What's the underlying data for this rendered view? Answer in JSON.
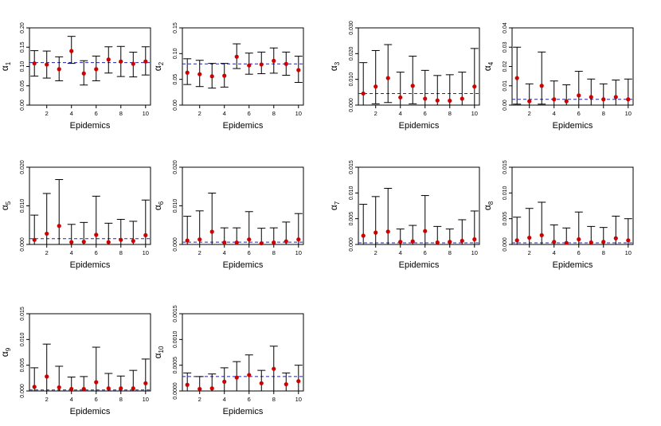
{
  "colors": {
    "point": "#cc0000",
    "ref_line": "#2222aa",
    "axis": "#000000",
    "errorbar": "#000000"
  },
  "chart_data": [
    {
      "type": "errorbar",
      "ylabel": "α",
      "ylabel_sub": "1",
      "xlabel": "Epidemics",
      "x": [
        1,
        2,
        3,
        4,
        5,
        6,
        7,
        8,
        9,
        10
      ],
      "xticks": [
        "2",
        "4",
        "6",
        "8",
        "10"
      ],
      "xlim": [
        0.6,
        10.4
      ],
      "ylim": [
        0,
        0.2
      ],
      "yticks": [
        "0.00",
        "0.05",
        "0.10",
        "0.15",
        "0.20"
      ],
      "ref_line": 0.11,
      "values": [
        0.108,
        0.105,
        0.093,
        0.14,
        0.082,
        0.093,
        0.118,
        0.113,
        0.107,
        0.113
      ],
      "lower": [
        0.075,
        0.07,
        0.063,
        0.108,
        0.052,
        0.063,
        0.083,
        0.074,
        0.073,
        0.078
      ],
      "upper": [
        0.141,
        0.14,
        0.125,
        0.178,
        0.115,
        0.127,
        0.151,
        0.152,
        0.137,
        0.151
      ]
    },
    {
      "type": "errorbar",
      "ylabel": "α",
      "ylabel_sub": "2",
      "xlabel": "Epidemics",
      "x": [
        1,
        2,
        3,
        4,
        5,
        6,
        7,
        8,
        9,
        10
      ],
      "xticks": [
        "2",
        "4",
        "6",
        "8",
        "10"
      ],
      "xlim": [
        0.6,
        10.4
      ],
      "ylim": [
        0,
        0.15
      ],
      "yticks": [
        "0.00",
        "0.05",
        "0.10",
        "0.15"
      ],
      "ref_line": 0.08,
      "values": [
        0.063,
        0.06,
        0.056,
        0.057,
        0.094,
        0.077,
        0.079,
        0.086,
        0.08,
        0.068
      ],
      "lower": [
        0.04,
        0.036,
        0.033,
        0.035,
        0.071,
        0.06,
        0.061,
        0.062,
        0.058,
        0.044
      ],
      "upper": [
        0.09,
        0.087,
        0.081,
        0.081,
        0.119,
        0.101,
        0.103,
        0.111,
        0.103,
        0.095
      ]
    },
    {
      "type": "errorbar",
      "ylabel": "α",
      "ylabel_sub": "3",
      "xlabel": "Epidemics",
      "x": [
        1,
        2,
        3,
        4,
        5,
        6,
        7,
        8,
        9,
        10
      ],
      "xticks": [
        "2",
        "4",
        "6",
        "8",
        "10"
      ],
      "xlim": [
        0.6,
        10.4
      ],
      "ylim": [
        0,
        0.03
      ],
      "yticks": [
        "0.000",
        "0.010",
        "0.020",
        "0.030"
      ],
      "ref_line": 0.0045,
      "values": [
        0.0045,
        0.0072,
        0.0105,
        0.003,
        0.0075,
        0.0025,
        0.0018,
        0.0017,
        0.0025,
        0.0072
      ],
      "lower": [
        0.0,
        0.0005,
        0.001,
        0.0,
        0.0005,
        0.0,
        0.0,
        0.0,
        0.0,
        0.0
      ],
      "upper": [
        0.0165,
        0.0212,
        0.0235,
        0.0128,
        0.019,
        0.0135,
        0.0115,
        0.0118,
        0.0128,
        0.022
      ]
    },
    {
      "type": "errorbar",
      "ylabel": "α",
      "ylabel_sub": "4",
      "xlabel": "Epidemics",
      "x": [
        1,
        2,
        3,
        4,
        5,
        6,
        7,
        8,
        9,
        10
      ],
      "xticks": [
        "2",
        "4",
        "6",
        "8",
        "10"
      ],
      "xlim": [
        0.6,
        10.4
      ],
      "ylim": [
        0,
        0.04
      ],
      "yticks": [
        "0.00",
        "0.01",
        "0.02",
        "0.03",
        "0.04"
      ],
      "ref_line": 0.003,
      "values": [
        0.014,
        0.002,
        0.01,
        0.003,
        0.002,
        0.005,
        0.0042,
        0.003,
        0.0042,
        0.003
      ],
      "lower": [
        0.0005,
        0.0,
        0.0005,
        0.0,
        0.0,
        0.0,
        0.0,
        0.0,
        0.0,
        0.0
      ],
      "upper": [
        0.03,
        0.011,
        0.0275,
        0.0125,
        0.0105,
        0.0175,
        0.0135,
        0.011,
        0.013,
        0.0135
      ]
    },
    {
      "type": "errorbar",
      "ylabel": "α",
      "ylabel_sub": "5",
      "xlabel": "Epidemics",
      "x": [
        1,
        2,
        3,
        4,
        5,
        6,
        7,
        8,
        9,
        10
      ],
      "xticks": [
        "2",
        "4",
        "6",
        "8",
        "10"
      ],
      "xlim": [
        0.6,
        10.4
      ],
      "ylim": [
        0,
        0.02
      ],
      "yticks": [
        "0.000",
        "0.010",
        "0.020"
      ],
      "ref_line": 0.0015,
      "values": [
        0.0012,
        0.0028,
        0.0048,
        0.0006,
        0.0007,
        0.0025,
        0.0006,
        0.0012,
        0.0009,
        0.0024
      ],
      "lower": [
        0.0,
        0.0,
        0.0,
        0.0,
        0.0,
        0.0,
        0.0,
        0.0,
        0.0,
        0.0
      ],
      "upper": [
        0.0076,
        0.0132,
        0.0168,
        0.0052,
        0.0057,
        0.0125,
        0.0055,
        0.0065,
        0.006,
        0.0115
      ]
    },
    {
      "type": "errorbar",
      "ylabel": "α",
      "ylabel_sub": "6",
      "xlabel": "Epidemics",
      "x": [
        1,
        2,
        3,
        4,
        5,
        6,
        7,
        8,
        9,
        10
      ],
      "xticks": [
        "2",
        "4",
        "6",
        "8",
        "10"
      ],
      "xlim": [
        0.6,
        10.4
      ],
      "ylim": [
        0,
        0.02
      ],
      "yticks": [
        "0.000",
        "0.010",
        "0.020"
      ],
      "ref_line": 0.0006,
      "values": [
        0.001,
        0.0013,
        0.0033,
        0.0005,
        0.0005,
        0.0013,
        0.0003,
        0.0005,
        0.0008,
        0.0013
      ],
      "lower": [
        0.0,
        0.0,
        0.0,
        0.0,
        0.0,
        0.0,
        0.0,
        0.0,
        0.0,
        0.0
      ],
      "upper": [
        0.0073,
        0.0087,
        0.0133,
        0.0043,
        0.0043,
        0.0085,
        0.0042,
        0.0043,
        0.0058,
        0.008
      ]
    },
    {
      "type": "errorbar",
      "ylabel": "α",
      "ylabel_sub": "7",
      "xlabel": "Epidemics",
      "x": [
        1,
        2,
        3,
        4,
        5,
        6,
        7,
        8,
        9,
        10
      ],
      "xticks": [
        "2",
        "4",
        "6",
        "8",
        "10"
      ],
      "xlim": [
        0.6,
        10.4
      ],
      "ylim": [
        0,
        0.015
      ],
      "yticks": [
        "0.000",
        "0.005",
        "0.010",
        "0.015"
      ],
      "ref_line": 0.0003,
      "values": [
        0.0017,
        0.0023,
        0.0025,
        0.0005,
        0.0006,
        0.0026,
        0.0004,
        0.0005,
        0.0007,
        0.001
      ],
      "lower": [
        0.0,
        0.0,
        0.0,
        0.0,
        0.0,
        0.0,
        0.0,
        0.0,
        0.0,
        0.0
      ],
      "upper": [
        0.0078,
        0.0093,
        0.0109,
        0.003,
        0.0037,
        0.0095,
        0.0035,
        0.003,
        0.0048,
        0.0065
      ]
    },
    {
      "type": "errorbar",
      "ylabel": "α",
      "ylabel_sub": "8",
      "xlabel": "Epidemics",
      "x": [
        1,
        2,
        3,
        4,
        5,
        6,
        7,
        8,
        9,
        10
      ],
      "xticks": [
        "2",
        "4",
        "6",
        "8",
        "10"
      ],
      "xlim": [
        0.6,
        10.4
      ],
      "ylim": [
        0,
        0.015
      ],
      "yticks": [
        "0.000",
        "0.005",
        "0.010",
        "0.015"
      ],
      "ref_line": 0.0003,
      "values": [
        0.0008,
        0.0013,
        0.0018,
        0.0005,
        0.0003,
        0.001,
        0.0004,
        0.0005,
        0.0012,
        0.0008
      ],
      "lower": [
        0.0,
        0.0,
        0.0,
        0.0,
        0.0,
        0.0,
        0.0,
        0.0,
        0.0,
        0.0
      ],
      "upper": [
        0.0053,
        0.007,
        0.0082,
        0.0038,
        0.0032,
        0.0063,
        0.0035,
        0.0033,
        0.0055,
        0.005
      ]
    },
    {
      "type": "errorbar",
      "ylabel": "α",
      "ylabel_sub": "9",
      "xlabel": "Epidemics",
      "x": [
        1,
        2,
        3,
        4,
        5,
        6,
        7,
        8,
        9,
        10
      ],
      "xticks": [
        "2",
        "4",
        "6",
        "8",
        "10"
      ],
      "xlim": [
        0.6,
        10.4
      ],
      "ylim": [
        0,
        0.015
      ],
      "yticks": [
        "0.000",
        "0.005",
        "0.010",
        "0.015"
      ],
      "ref_line": 0.0002,
      "values": [
        0.0008,
        0.0028,
        0.0007,
        0.0004,
        0.0004,
        0.0017,
        0.0005,
        0.0005,
        0.0005,
        0.0015
      ],
      "lower": [
        0.0,
        0.0,
        0.0,
        0.0,
        0.0,
        0.0,
        0.0,
        0.0,
        0.0,
        0.0
      ],
      "upper": [
        0.0045,
        0.0091,
        0.0048,
        0.0027,
        0.0028,
        0.0085,
        0.0034,
        0.0029,
        0.004,
        0.0062
      ]
    },
    {
      "type": "errorbar",
      "ylabel": "α",
      "ylabel_sub": "10",
      "xlabel": "Epidemics",
      "x": [
        1,
        2,
        3,
        4,
        5,
        6,
        7,
        8,
        9,
        10
      ],
      "xticks": [
        "2",
        "4",
        "6",
        "8",
        "10"
      ],
      "xlim": [
        0.6,
        10.4
      ],
      "ylim": [
        0,
        0.0015
      ],
      "yticks": [
        "0.0000",
        "0.0005",
        "0.0010",
        "0.0015"
      ],
      "ref_line": 0.00028,
      "values": [
        0.00012,
        4e-05,
        5e-05,
        0.00018,
        0.00026,
        0.00031,
        0.00015,
        0.00043,
        0.00013,
        0.00019
      ],
      "lower": [
        0.0,
        0.0,
        0.0,
        0.0,
        0.0,
        0.0,
        0.0,
        0.0,
        0.0,
        0.0
      ],
      "upper": [
        0.00035,
        0.00028,
        0.00033,
        0.00045,
        0.00057,
        0.0007,
        0.0004,
        0.00087,
        0.00035,
        0.0005
      ]
    }
  ]
}
